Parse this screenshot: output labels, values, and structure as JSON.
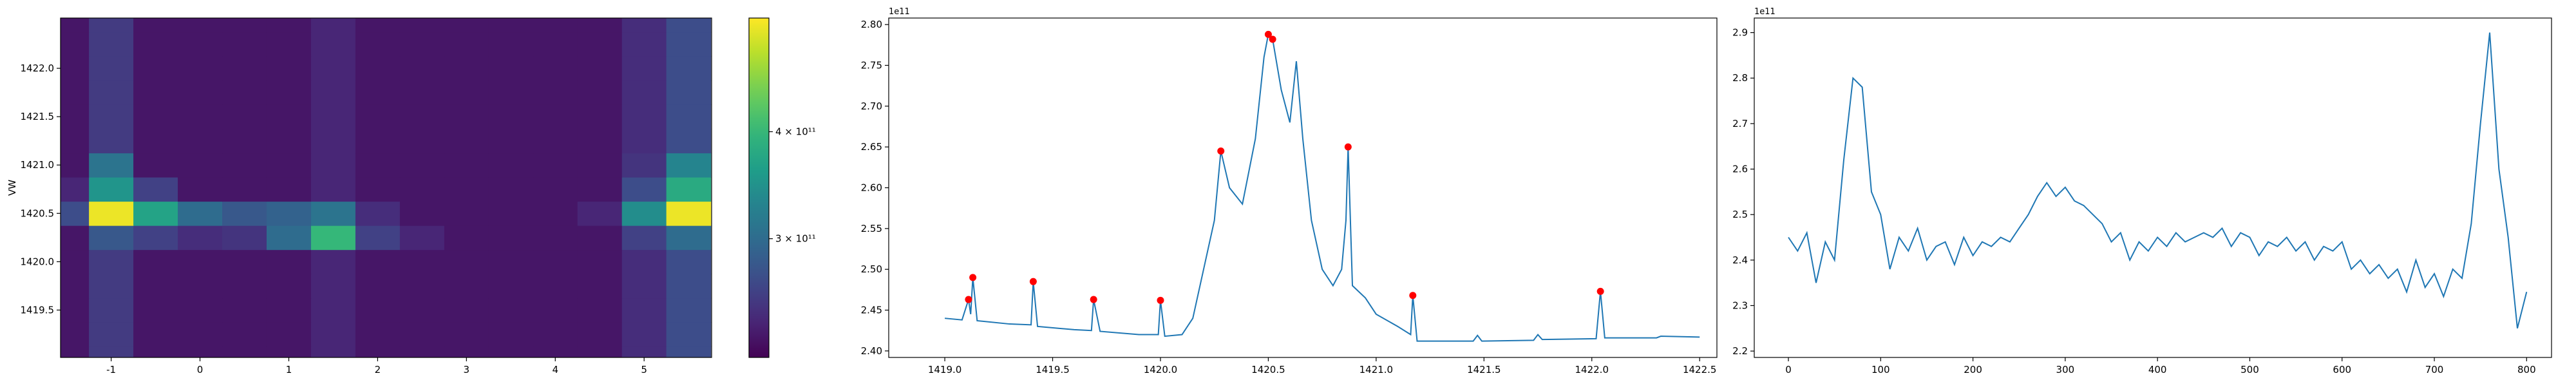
{
  "chart_data": [
    {
      "type": "heatmap",
      "ylabel": "VW",
      "colormap": "viridis",
      "clog": true,
      "x": [
        -1.5,
        -1,
        -0.5,
        0,
        0.5,
        1,
        1.5,
        2,
        2.5,
        3,
        3.5,
        4,
        4.5,
        5,
        5.5
      ],
      "y": [
        1419.0,
        1419.25,
        1419.5,
        1419.75,
        1420.0,
        1420.25,
        1420.5,
        1420.75,
        1421.0,
        1421.25,
        1421.5,
        1421.75,
        1422.0,
        1422.25,
        1422.5
      ],
      "z": [
        [
          230000000000.0,
          255000000000.0,
          230000000000.0,
          230000000000.0,
          230000000000.0,
          230000000000.0,
          240000000000.0,
          230000000000.0,
          230000000000.0,
          230000000000.0,
          230000000000.0,
          230000000000.0,
          230000000000.0,
          245000000000.0,
          270000000000.0
        ],
        [
          230000000000.0,
          255000000000.0,
          230000000000.0,
          230000000000.0,
          230000000000.0,
          230000000000.0,
          240000000000.0,
          230000000000.0,
          230000000000.0,
          230000000000.0,
          230000000000.0,
          230000000000.0,
          230000000000.0,
          245000000000.0,
          270000000000.0
        ],
        [
          230000000000.0,
          255000000000.0,
          230000000000.0,
          230000000000.0,
          230000000000.0,
          230000000000.0,
          240000000000.0,
          230000000000.0,
          230000000000.0,
          230000000000.0,
          230000000000.0,
          230000000000.0,
          230000000000.0,
          245000000000.0,
          270000000000.0
        ],
        [
          230000000000.0,
          255000000000.0,
          230000000000.0,
          230000000000.0,
          230000000000.0,
          230000000000.0,
          240000000000.0,
          230000000000.0,
          230000000000.0,
          230000000000.0,
          230000000000.0,
          230000000000.0,
          230000000000.0,
          245000000000.0,
          270000000000.0
        ],
        [
          230000000000.0,
          255000000000.0,
          230000000000.0,
          230000000000.0,
          230000000000.0,
          230000000000.0,
          240000000000.0,
          230000000000.0,
          230000000000.0,
          230000000000.0,
          230000000000.0,
          230000000000.0,
          230000000000.0,
          245000000000.0,
          270000000000.0
        ],
        [
          230000000000.0,
          280000000000.0,
          260000000000.0,
          245000000000.0,
          250000000000.0,
          300000000000.0,
          400000000000.0,
          260000000000.0,
          240000000000.0,
          230000000000.0,
          230000000000.0,
          230000000000.0,
          230000000000.0,
          260000000000.0,
          300000000000.0
        ],
        [
          270000000000.0,
          530000000000.0,
          370000000000.0,
          300000000000.0,
          280000000000.0,
          290000000000.0,
          310000000000.0,
          245000000000.0,
          230000000000.0,
          230000000000.0,
          230000000000.0,
          230000000000.0,
          240000000000.0,
          340000000000.0,
          530000000000.0
        ],
        [
          240000000000.0,
          350000000000.0,
          260000000000.0,
          230000000000.0,
          230000000000.0,
          230000000000.0,
          240000000000.0,
          230000000000.0,
          230000000000.0,
          230000000000.0,
          230000000000.0,
          230000000000.0,
          230000000000.0,
          270000000000.0,
          380000000000.0
        ],
        [
          230000000000.0,
          310000000000.0,
          230000000000.0,
          230000000000.0,
          230000000000.0,
          230000000000.0,
          240000000000.0,
          230000000000.0,
          230000000000.0,
          230000000000.0,
          230000000000.0,
          230000000000.0,
          230000000000.0,
          250000000000.0,
          330000000000.0
        ],
        [
          230000000000.0,
          255000000000.0,
          230000000000.0,
          230000000000.0,
          230000000000.0,
          230000000000.0,
          240000000000.0,
          230000000000.0,
          230000000000.0,
          230000000000.0,
          230000000000.0,
          230000000000.0,
          230000000000.0,
          245000000000.0,
          270000000000.0
        ],
        [
          230000000000.0,
          255000000000.0,
          230000000000.0,
          230000000000.0,
          230000000000.0,
          230000000000.0,
          240000000000.0,
          230000000000.0,
          230000000000.0,
          230000000000.0,
          230000000000.0,
          230000000000.0,
          230000000000.0,
          245000000000.0,
          270000000000.0
        ],
        [
          230000000000.0,
          255000000000.0,
          230000000000.0,
          230000000000.0,
          230000000000.0,
          230000000000.0,
          240000000000.0,
          230000000000.0,
          230000000000.0,
          230000000000.0,
          230000000000.0,
          230000000000.0,
          230000000000.0,
          245000000000.0,
          270000000000.0
        ],
        [
          230000000000.0,
          255000000000.0,
          230000000000.0,
          230000000000.0,
          230000000000.0,
          230000000000.0,
          240000000000.0,
          230000000000.0,
          230000000000.0,
          230000000000.0,
          230000000000.0,
          230000000000.0,
          230000000000.0,
          245000000000.0,
          270000000000.0
        ],
        [
          230000000000.0,
          255000000000.0,
          230000000000.0,
          230000000000.0,
          230000000000.0,
          230000000000.0,
          240000000000.0,
          230000000000.0,
          230000000000.0,
          230000000000.0,
          230000000000.0,
          230000000000.0,
          230000000000.0,
          245000000000.0,
          270000000000.0
        ],
        [
          230000000000.0,
          255000000000.0,
          230000000000.0,
          230000000000.0,
          230000000000.0,
          230000000000.0,
          240000000000.0,
          230000000000.0,
          230000000000.0,
          230000000000.0,
          230000000000.0,
          230000000000.0,
          230000000000.0,
          245000000000.0,
          270000000000.0
        ]
      ],
      "xlim": [
        -1.57,
        5.76
      ],
      "ylim": [
        1419.01,
        1422.52
      ],
      "xticks": [
        -1,
        0,
        1,
        2,
        3,
        4,
        5
      ],
      "yticks": [
        1419.5,
        {
          "value": 1420,
          "label": "1420.0"
        },
        1420.5,
        {
          "value": 1421,
          "label": "1421.0"
        },
        1421.5,
        {
          "value": 1422,
          "label": "1422.0"
        }
      ],
      "clim": [
        218000000000.0,
        543000000000.0
      ],
      "cticks": [
        {
          "value": 300000000000.0,
          "label": "3 × 10¹¹"
        },
        {
          "value": 400000000000.0,
          "label": "4 × 10¹¹"
        }
      ]
    },
    {
      "type": "line",
      "offset_label": "1e11",
      "x": [
        1419.0,
        1419.08,
        1419.11,
        1419.12,
        1419.13,
        1419.15,
        1419.3,
        1419.4,
        1419.41,
        1419.43,
        1419.6,
        1419.68,
        1419.69,
        1419.72,
        1419.9,
        1419.99,
        1420.0,
        1420.02,
        1420.1,
        1420.15,
        1420.2,
        1420.25,
        1420.28,
        1420.32,
        1420.38,
        1420.44,
        1420.48,
        1420.5,
        1420.52,
        1420.56,
        1420.6,
        1420.63,
        1420.66,
        1420.7,
        1420.75,
        1420.8,
        1420.84,
        1420.86,
        1420.87,
        1420.89,
        1420.95,
        1421.0,
        1421.1,
        1421.16,
        1421.17,
        1421.19,
        1421.4,
        1421.45,
        1421.47,
        1421.49,
        1421.73,
        1421.75,
        1421.77,
        1422.02,
        1422.04,
        1422.06,
        1422.3,
        1422.32,
        1422.5
      ],
      "series": [
        {
          "color": "#1f77b4",
          "values": [
            2.44,
            2.438,
            2.463,
            2.445,
            2.49,
            2.437,
            2.433,
            2.432,
            2.485,
            2.43,
            2.426,
            2.425,
            2.463,
            2.424,
            2.42,
            2.42,
            2.462,
            2.418,
            2.42,
            2.44,
            2.5,
            2.56,
            2.645,
            2.6,
            2.58,
            2.66,
            2.76,
            2.788,
            2.782,
            2.72,
            2.68,
            2.755,
            2.66,
            2.56,
            2.5,
            2.48,
            2.5,
            2.56,
            2.65,
            2.48,
            2.465,
            2.445,
            2.43,
            2.42,
            2.468,
            2.412,
            2.412,
            2.412,
            2.419,
            2.412,
            2.413,
            2.42,
            2.414,
            2.415,
            2.473,
            2.416,
            2.416,
            2.418,
            2.417
          ]
        }
      ],
      "peaks": {
        "color": "#ff0000",
        "x": [
          1419.11,
          1419.13,
          1419.41,
          1419.69,
          1420.0,
          1420.28,
          1420.5,
          1420.52,
          1420.87,
          1421.17,
          1422.04
        ],
        "values": [
          2.463,
          2.49,
          2.485,
          2.463,
          2.462,
          2.645,
          2.788,
          2.782,
          2.65,
          2.468,
          2.473
        ]
      },
      "xlim": [
        1418.74,
        1422.58
      ],
      "ylim": [
        2.392,
        2.808
      ],
      "xticks": [
        {
          "value": 1419,
          "label": "1419.0"
        },
        1419.5,
        {
          "value": 1420,
          "label": "1420.0"
        },
        1420.5,
        {
          "value": 1421,
          "label": "1421.0"
        },
        1421.5,
        {
          "value": 1422,
          "label": "1422.0"
        },
        1422.5
      ],
      "yticks": [
        {
          "value": 2.4,
          "label": "2.40"
        },
        2.45,
        {
          "value": 2.5,
          "label": "2.50"
        },
        2.55,
        {
          "value": 2.6,
          "label": "2.60"
        },
        2.65,
        {
          "value": 2.7,
          "label": "2.70"
        },
        2.75,
        {
          "value": 2.8,
          "label": "2.80"
        }
      ]
    },
    {
      "type": "line",
      "offset_label": "1e11",
      "x": [
        0,
        10,
        20,
        30,
        40,
        50,
        60,
        70,
        80,
        90,
        100,
        110,
        120,
        130,
        140,
        150,
        160,
        170,
        180,
        190,
        200,
        210,
        220,
        230,
        240,
        250,
        260,
        270,
        280,
        290,
        300,
        310,
        320,
        330,
        340,
        350,
        360,
        370,
        380,
        390,
        400,
        410,
        420,
        430,
        440,
        450,
        460,
        470,
        480,
        490,
        500,
        510,
        520,
        530,
        540,
        550,
        560,
        570,
        580,
        590,
        600,
        610,
        620,
        630,
        640,
        650,
        660,
        670,
        680,
        690,
        700,
        710,
        720,
        730,
        740,
        750,
        760,
        770,
        780,
        790,
        800
      ],
      "series": [
        {
          "color": "#1f77b4",
          "values": [
            2.45,
            2.42,
            2.46,
            2.35,
            2.44,
            2.4,
            2.62,
            2.8,
            2.78,
            2.55,
            2.5,
            2.38,
            2.45,
            2.42,
            2.47,
            2.4,
            2.43,
            2.44,
            2.39,
            2.45,
            2.41,
            2.44,
            2.43,
            2.45,
            2.44,
            2.47,
            2.5,
            2.54,
            2.57,
            2.54,
            2.56,
            2.53,
            2.52,
            2.5,
            2.48,
            2.44,
            2.46,
            2.4,
            2.44,
            2.42,
            2.45,
            2.43,
            2.46,
            2.44,
            2.45,
            2.46,
            2.45,
            2.47,
            2.43,
            2.46,
            2.45,
            2.41,
            2.44,
            2.43,
            2.45,
            2.42,
            2.44,
            2.4,
            2.43,
            2.42,
            2.44,
            2.38,
            2.4,
            2.37,
            2.39,
            2.36,
            2.38,
            2.33,
            2.4,
            2.34,
            2.37,
            2.32,
            2.38,
            2.36,
            2.48,
            2.7,
            2.9,
            2.6,
            2.45,
            2.25,
            2.33
          ]
        }
      ],
      "xlim": [
        -37,
        827
      ],
      "ylim": [
        2.186,
        2.932
      ],
      "xticks": [
        0,
        100,
        200,
        300,
        400,
        500,
        600,
        700,
        800
      ],
      "yticks": [
        2.2,
        2.3,
        2.4,
        2.5,
        2.6,
        2.7,
        2.8,
        2.9
      ]
    }
  ]
}
